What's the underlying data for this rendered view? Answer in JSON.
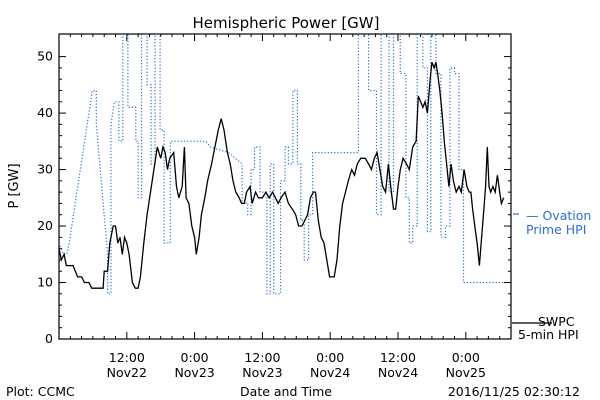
{
  "chart_data": {
    "type": "line",
    "title": "Hemispheric Power [GW]",
    "ylabel": "P [GW]",
    "xlabel": "Date and Time",
    "ylim": [
      0,
      54
    ],
    "yticks": [
      0,
      10,
      20,
      30,
      40,
      50
    ],
    "xlim": [
      0,
      80
    ],
    "xticks": [
      {
        "x": 12,
        "time": "12:00",
        "date": "Nov22"
      },
      {
        "x": 24,
        "time": "0:00",
        "date": "Nov23"
      },
      {
        "x": 36,
        "time": "12:00",
        "date": "Nov23"
      },
      {
        "x": 48,
        "time": "0:00",
        "date": "Nov24"
      },
      {
        "x": 60,
        "time": "12:00",
        "date": "Nov24"
      },
      {
        "x": 72,
        "time": "0:00",
        "date": "Nov25"
      }
    ],
    "series": [
      {
        "name": "SWPC 5-min HPI",
        "color": "#000000",
        "style": "solid",
        "points": [
          [
            0,
            16
          ],
          [
            0.4,
            14
          ],
          [
            0.9,
            15
          ],
          [
            1.3,
            13
          ],
          [
            2.5,
            13
          ],
          [
            3.3,
            11
          ],
          [
            4,
            11
          ],
          [
            4.5,
            10
          ],
          [
            5.3,
            10
          ],
          [
            5.8,
            9
          ],
          [
            7.8,
            9
          ],
          [
            8,
            12
          ],
          [
            8.6,
            12
          ],
          [
            9,
            17
          ],
          [
            9.6,
            20
          ],
          [
            10,
            20
          ],
          [
            10.4,
            17
          ],
          [
            10.8,
            18
          ],
          [
            11.2,
            15
          ],
          [
            11.6,
            18
          ],
          [
            12,
            17
          ],
          [
            12.4,
            15
          ],
          [
            13,
            10
          ],
          [
            13.5,
            9
          ],
          [
            14,
            9
          ],
          [
            14.4,
            11
          ],
          [
            15,
            17
          ],
          [
            15.6,
            22
          ],
          [
            16.2,
            26
          ],
          [
            16.8,
            30
          ],
          [
            17.4,
            34
          ],
          [
            18,
            32
          ],
          [
            18.4,
            34
          ],
          [
            18.8,
            33
          ],
          [
            19.2,
            30
          ],
          [
            19.6,
            32
          ],
          [
            20.3,
            33
          ],
          [
            20.8,
            27
          ],
          [
            21.2,
            25
          ],
          [
            21.8,
            27
          ],
          [
            22.2,
            34
          ],
          [
            22.5,
            25
          ],
          [
            23,
            24
          ],
          [
            23.5,
            20
          ],
          [
            24,
            18
          ],
          [
            24.3,
            15
          ],
          [
            24.8,
            18
          ],
          [
            25.2,
            22
          ],
          [
            25.8,
            25
          ],
          [
            26.3,
            28
          ],
          [
            27,
            31
          ],
          [
            27.6,
            34
          ],
          [
            28.2,
            37
          ],
          [
            28.7,
            39
          ],
          [
            29.2,
            37
          ],
          [
            29.8,
            33
          ],
          [
            30.3,
            31
          ],
          [
            30.8,
            28
          ],
          [
            31.3,
            26
          ],
          [
            31.9,
            25
          ],
          [
            32.3,
            24
          ],
          [
            32.8,
            24
          ],
          [
            33.2,
            26
          ],
          [
            33.8,
            27
          ],
          [
            34.2,
            24
          ],
          [
            34.8,
            26
          ],
          [
            35.3,
            25
          ],
          [
            36,
            25
          ],
          [
            36.6,
            26
          ],
          [
            37.2,
            25
          ],
          [
            37.8,
            26
          ],
          [
            38.3,
            25
          ],
          [
            38.8,
            24
          ],
          [
            39.3,
            25
          ],
          [
            40,
            26
          ],
          [
            40.6,
            24
          ],
          [
            41.3,
            23
          ],
          [
            41.9,
            22
          ],
          [
            42.4,
            20
          ],
          [
            43,
            20
          ],
          [
            43.5,
            21
          ],
          [
            44,
            22
          ],
          [
            44.5,
            25
          ],
          [
            45,
            26
          ],
          [
            45.4,
            26
          ],
          [
            45.9,
            21
          ],
          [
            46.4,
            18
          ],
          [
            46.9,
            17
          ],
          [
            47.4,
            14
          ],
          [
            47.9,
            11
          ],
          [
            48.7,
            11
          ],
          [
            49.2,
            14
          ],
          [
            49.7,
            20
          ],
          [
            50.2,
            24
          ],
          [
            50.7,
            26
          ],
          [
            51.2,
            28
          ],
          [
            51.8,
            30
          ],
          [
            52.3,
            29
          ],
          [
            52.8,
            31
          ],
          [
            53.4,
            32
          ],
          [
            54.2,
            32
          ],
          [
            54.8,
            31
          ],
          [
            55.3,
            30
          ],
          [
            55.8,
            32
          ],
          [
            56.3,
            33
          ],
          [
            56.8,
            30
          ],
          [
            57.3,
            27
          ],
          [
            57.8,
            26
          ],
          [
            58.3,
            31
          ],
          [
            58.7,
            27
          ],
          [
            59.2,
            23
          ],
          [
            59.6,
            23
          ],
          [
            60,
            27
          ],
          [
            60.4,
            30
          ],
          [
            60.9,
            32
          ],
          [
            61.5,
            31
          ],
          [
            62,
            30
          ],
          [
            62.6,
            34
          ],
          [
            63.2,
            35
          ],
          [
            63.6,
            43
          ],
          [
            64,
            42
          ],
          [
            64.4,
            41
          ],
          [
            64.8,
            42
          ],
          [
            65.2,
            40
          ],
          [
            65.7,
            46
          ],
          [
            66,
            49
          ],
          [
            66.4,
            48
          ],
          [
            66.7,
            49
          ],
          [
            67,
            47
          ],
          [
            67.4,
            44
          ],
          [
            67.8,
            40
          ],
          [
            68.2,
            35
          ],
          [
            68.6,
            31
          ],
          [
            69,
            27
          ],
          [
            69.4,
            31
          ],
          [
            69.8,
            28
          ],
          [
            70.3,
            26
          ],
          [
            70.8,
            27
          ],
          [
            71.2,
            26
          ],
          [
            71.7,
            30
          ],
          [
            72.2,
            27
          ],
          [
            72.6,
            26
          ],
          [
            72.9,
            26
          ],
          [
            73.2,
            23
          ],
          [
            73.6,
            20
          ],
          [
            74,
            17
          ],
          [
            74.4,
            13
          ],
          [
            74.8,
            18
          ],
          [
            75.2,
            23
          ],
          [
            75.5,
            27
          ],
          [
            75.8,
            34
          ],
          [
            76.1,
            27
          ],
          [
            76.4,
            26
          ],
          [
            76.8,
            27
          ],
          [
            77.2,
            26
          ],
          [
            77.6,
            29
          ],
          [
            78,
            26
          ],
          [
            78.3,
            24
          ],
          [
            78.7,
            25
          ]
        ]
      },
      {
        "name": "Ovation Prime HPI",
        "color": "#2a6fd0",
        "style": "dotted",
        "points": [
          [
            0,
            17
          ],
          [
            0.8,
            15
          ],
          [
            1.4,
            15
          ],
          [
            1.8,
            17
          ],
          [
            5.9,
            44
          ],
          [
            6.6,
            44
          ],
          [
            6.6,
            38
          ],
          [
            8.6,
            15
          ],
          [
            8.6,
            8
          ],
          [
            9.2,
            8
          ],
          [
            9.2,
            38
          ],
          [
            9.8,
            42
          ],
          [
            10.6,
            42
          ],
          [
            10.6,
            35
          ],
          [
            11.3,
            35
          ],
          [
            11.3,
            54
          ],
          [
            12.2,
            54
          ],
          [
            12.2,
            41
          ],
          [
            13.6,
            41
          ],
          [
            13.6,
            35
          ],
          [
            14,
            35
          ],
          [
            14,
            25
          ],
          [
            14.6,
            25
          ],
          [
            14.6,
            54
          ],
          [
            15.6,
            54
          ],
          [
            15.6,
            45
          ],
          [
            16.3,
            45
          ],
          [
            16.3,
            31
          ],
          [
            17,
            31
          ],
          [
            17,
            54
          ],
          [
            17.9,
            54
          ],
          [
            17.9,
            37
          ],
          [
            18.6,
            37
          ],
          [
            18.6,
            17
          ],
          [
            19.7,
            17
          ],
          [
            19.7,
            35
          ],
          [
            26,
            35
          ],
          [
            26.8,
            34
          ],
          [
            30,
            33
          ],
          [
            32.4,
            31
          ],
          [
            32.4,
            24
          ],
          [
            33.4,
            24
          ],
          [
            33.4,
            22
          ],
          [
            34,
            22
          ],
          [
            34,
            30
          ],
          [
            34.6,
            30
          ],
          [
            34.6,
            34
          ],
          [
            35.6,
            34
          ],
          [
            35.6,
            26
          ],
          [
            36.8,
            26
          ],
          [
            36.8,
            8
          ],
          [
            37.4,
            8
          ],
          [
            37.4,
            31
          ],
          [
            38,
            31
          ],
          [
            38,
            8
          ],
          [
            39.2,
            8
          ],
          [
            39.2,
            28
          ],
          [
            40,
            28
          ],
          [
            40,
            34
          ],
          [
            40.6,
            34
          ],
          [
            40.6,
            31
          ],
          [
            41.4,
            31
          ],
          [
            41.4,
            44
          ],
          [
            42.2,
            44
          ],
          [
            42.2,
            31
          ],
          [
            42.8,
            31
          ],
          [
            42.8,
            21
          ],
          [
            43.4,
            21
          ],
          [
            43.4,
            14
          ],
          [
            44.2,
            14
          ],
          [
            44.2,
            22
          ],
          [
            44.9,
            22
          ],
          [
            44.9,
            33
          ],
          [
            49.6,
            33
          ],
          [
            49.6,
            33
          ],
          [
            53,
            33
          ],
          [
            53,
            54
          ],
          [
            54.8,
            54
          ],
          [
            54.8,
            44
          ],
          [
            56.2,
            44
          ],
          [
            56.2,
            22
          ],
          [
            57,
            22
          ],
          [
            57,
            54
          ],
          [
            58.4,
            54
          ],
          [
            58.4,
            26
          ],
          [
            59.2,
            26
          ],
          [
            59.2,
            54
          ],
          [
            60.4,
            54
          ],
          [
            60.4,
            47
          ],
          [
            61.4,
            47
          ],
          [
            61.4,
            25
          ],
          [
            62,
            25
          ],
          [
            62,
            17
          ],
          [
            62.6,
            17
          ],
          [
            62.6,
            20
          ],
          [
            63.4,
            20
          ],
          [
            63.4,
            54
          ],
          [
            64.4,
            54
          ],
          [
            64.4,
            48
          ],
          [
            65.2,
            48
          ],
          [
            65.2,
            19
          ],
          [
            65.8,
            19
          ],
          [
            65.8,
            54
          ],
          [
            66.7,
            54
          ],
          [
            66.7,
            47
          ],
          [
            67.6,
            47
          ],
          [
            67.6,
            18
          ],
          [
            68.4,
            18
          ],
          [
            68.4,
            20
          ],
          [
            69.2,
            20
          ],
          [
            69.2,
            48
          ],
          [
            70,
            48
          ],
          [
            70,
            47
          ],
          [
            70.8,
            47
          ],
          [
            70.8,
            30
          ],
          [
            71.6,
            30
          ],
          [
            71.6,
            10
          ],
          [
            78.7,
            10
          ]
        ]
      }
    ],
    "legend": [
      {
        "series": "Ovation Prime HPI",
        "label": "— Ovation",
        "label2": "Prime HPI",
        "placement": "right"
      },
      {
        "series": "SWPC 5-min HPI",
        "label": "SWPC",
        "label2": "5-min HPI",
        "placement": "bottom-right"
      }
    ]
  },
  "footer": {
    "left": "Plot: CCMC",
    "center": "Date and Time",
    "right": "2016/11/25 02:30:12"
  }
}
